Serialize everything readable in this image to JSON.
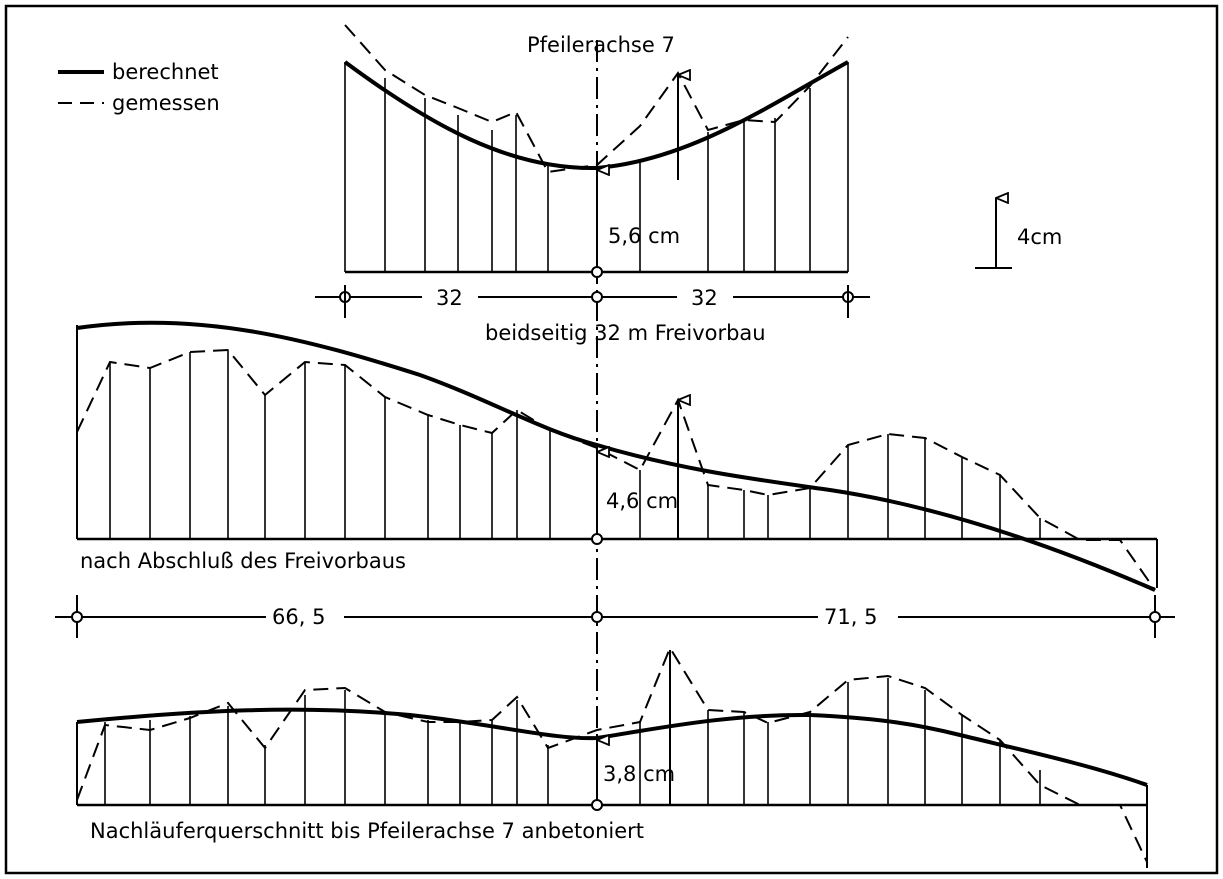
{
  "legend": {
    "calculated_label": "berechnet",
    "measured_label": "gemessen"
  },
  "scale": {
    "label": "4cm"
  },
  "pier": {
    "label": "Pfeilerachse 7"
  },
  "panels": [
    {
      "id": "top",
      "caption": "beidseitig 32 m Freivorbau",
      "center_value_label": "5,6 cm",
      "span_labels": [
        "32",
        "32"
      ]
    },
    {
      "id": "middle",
      "caption": "nach Abschluß des Freivorbaus",
      "center_value_label": "4,6 cm",
      "span_labels": [
        "66, 5",
        "71, 5"
      ]
    },
    {
      "id": "bottom",
      "caption": "Nachläuferquerschnitt bis Pfeilerachse 7 anbetoniert",
      "center_value_label": "3,8 cm"
    }
  ],
  "colors": {
    "line": "#000000",
    "background": "#ffffff"
  }
}
